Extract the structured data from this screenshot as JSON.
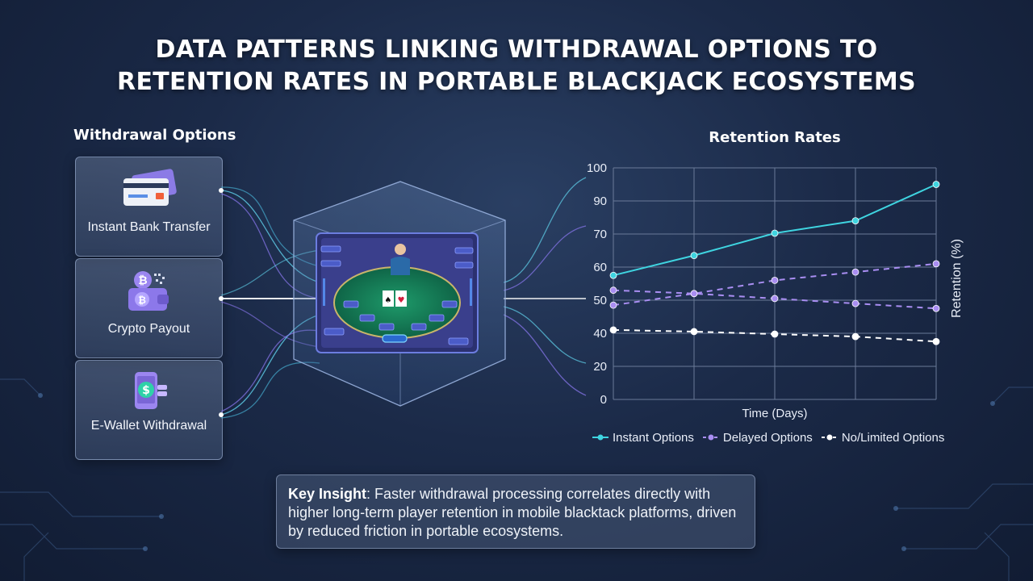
{
  "title": {
    "line1": "DATA PATTERNS LINKING WITHDRAWAL OPTIONS TO",
    "line2": "RETENTION RATES IN PORTABLE BLACKJACK ECOSYSTEMS"
  },
  "withdrawal": {
    "heading": "Withdrawal Options",
    "options": [
      {
        "label": "Instant Bank Transfer",
        "icon": "credit-card-icon"
      },
      {
        "label": "Crypto Payout",
        "icon": "crypto-wallet-icon"
      },
      {
        "label": "E-Wallet Withdrawal",
        "icon": "phone-wallet-icon"
      }
    ]
  },
  "insight": {
    "label": "Key Insight",
    "text": ": Faster withdrawal processing correlates directly with higher long-term player retention in mobile blacktack platforms, driven by reduced friction in portable ecosystems."
  },
  "colors": {
    "instant": "#3fd4e0",
    "delayed": "#a98ef2",
    "limited": "#ffffff",
    "grid": "#6a7a98"
  },
  "chart_data": {
    "type": "line",
    "title": "Retention Rates",
    "xlabel": "Time (Days)",
    "ylabel": "Retention (%)",
    "y_ticks": [
      "100",
      "90",
      "70",
      "60",
      "50",
      "40",
      "20",
      "0"
    ],
    "x": [
      1,
      2,
      3,
      4,
      5
    ],
    "grid": true,
    "legend_position": "bottom",
    "series": [
      {
        "name": "Instant Options",
        "style": "solid",
        "color": "#3fd4e0",
        "values": [
          57.5,
          63.5,
          70.5,
          78,
          95
        ]
      },
      {
        "name": "Delayed Options",
        "style": "dashed",
        "color": "#a98ef2",
        "values": [
          48.5,
          52,
          56,
          58.5,
          61
        ]
      },
      {
        "name": "Delayed Options",
        "style": "dashed",
        "color": "#a98ef2",
        "values": [
          53,
          52,
          50.5,
          49,
          47.5
        ],
        "legend": false
      },
      {
        "name": "No/Limited Options",
        "style": "dashed",
        "color": "#ffffff",
        "values": [
          41,
          40.5,
          39.5,
          38,
          35
        ]
      }
    ]
  }
}
